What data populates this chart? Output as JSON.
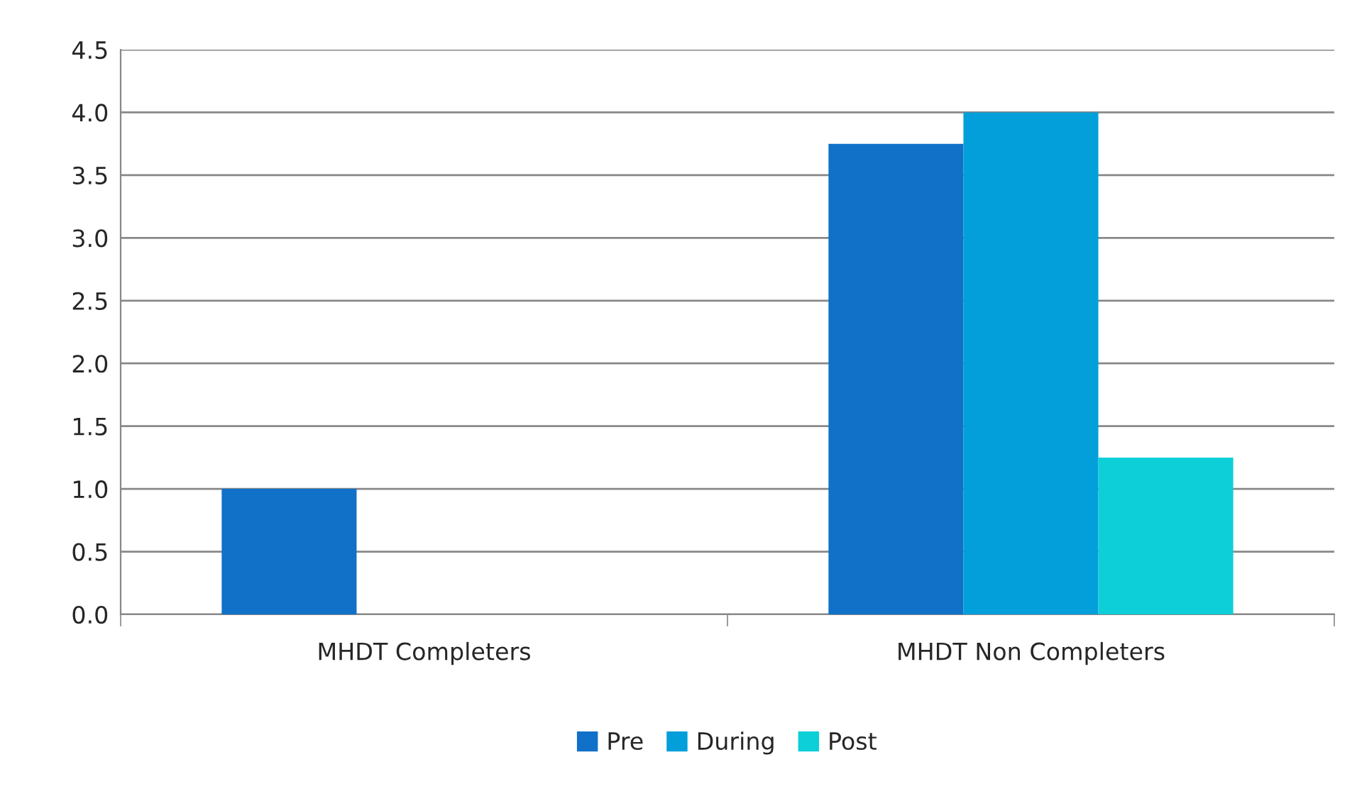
{
  "chart_data": {
    "type": "bar",
    "categories": [
      "MHDT Completers",
      "MHDT Non Completers"
    ],
    "series": [
      {
        "name": "Pre",
        "color": "#1170c8",
        "values": [
          1.0,
          3.75
        ]
      },
      {
        "name": "During",
        "color": "#039fdb",
        "values": [
          0,
          4.0
        ]
      },
      {
        "name": "Post",
        "color": "#0dcfd8",
        "values": [
          0,
          1.25
        ]
      }
    ],
    "ylim": [
      0,
      4.5
    ],
    "yticks": [
      {
        "value": 0,
        "label": "0.0"
      },
      {
        "value": 0.5,
        "label": "0.5"
      },
      {
        "value": 1,
        "label": "1.0"
      },
      {
        "value": 1.5,
        "label": "1.5"
      },
      {
        "value": 2,
        "label": "2.0"
      },
      {
        "value": 2.5,
        "label": "2.5"
      },
      {
        "value": 3,
        "label": "3.0"
      },
      {
        "value": 3.5,
        "label": "3.5"
      },
      {
        "value": 4,
        "label": "4.0"
      },
      {
        "value": 4.5,
        "label": "4.5"
      }
    ],
    "grid": "y",
    "legend": "bottom"
  }
}
